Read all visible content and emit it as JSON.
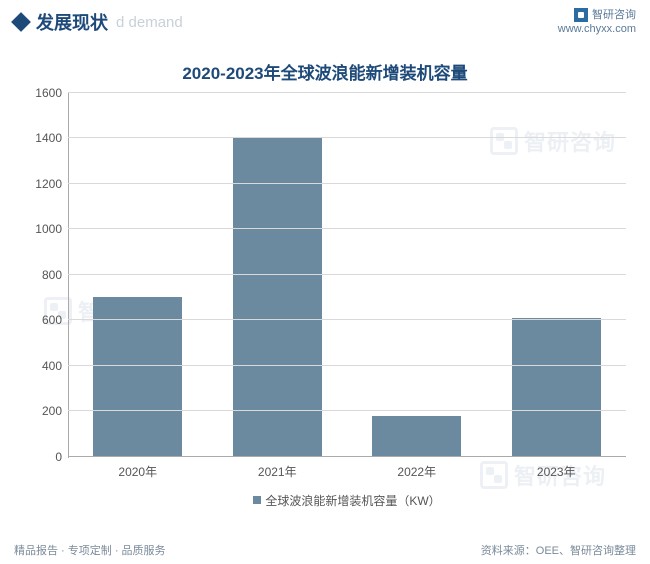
{
  "header": {
    "title": "发展现状",
    "subtitle": "d demand",
    "brand": "智研咨询",
    "url": "www.chyxx.com"
  },
  "chart": {
    "type": "bar",
    "title": "2020-2023年全球波浪能新增装机容量",
    "categories": [
      "2020年",
      "2021年",
      "2022年",
      "2023年"
    ],
    "values": [
      700,
      1400,
      180,
      610
    ],
    "bar_color": "#6b8aa0",
    "background_color": "#ffffff",
    "grid_color": "#d9d9d9",
    "y_axis_color": "#aaaaaa",
    "ylim": [
      0,
      1600
    ],
    "ytick_step": 200,
    "yticks": [
      0,
      200,
      400,
      600,
      800,
      1000,
      1200,
      1400,
      1600
    ],
    "legend_label": "全球波浪能新增装机容量（KW）",
    "title_fontsize": 17,
    "tick_fontsize": 12,
    "bar_width_ratio": 0.64,
    "title_color": "#1e4a7a",
    "tick_color": "#555555"
  },
  "watermark": {
    "text": "智研咨询"
  },
  "footer": {
    "left": "精品报告 · 专项定制 · 品质服务",
    "right": "资料来源：OEE、智研咨询整理"
  }
}
